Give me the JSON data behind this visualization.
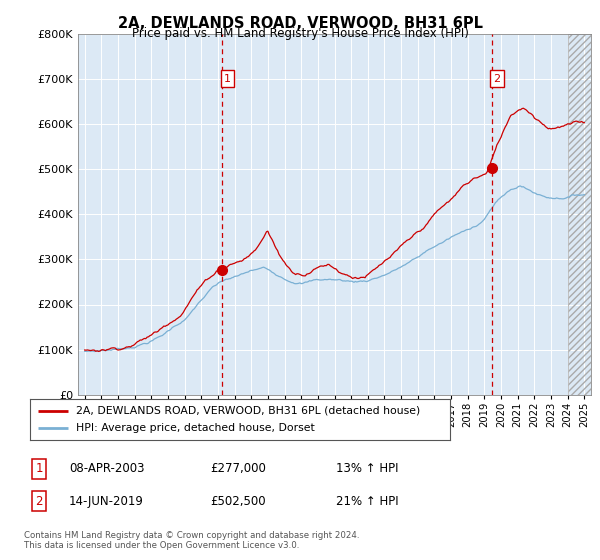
{
  "title": "2A, DEWLANDS ROAD, VERWOOD, BH31 6PL",
  "subtitle": "Price paid vs. HM Land Registry's House Price Index (HPI)",
  "ytick_values": [
    0,
    100000,
    200000,
    300000,
    400000,
    500000,
    600000,
    700000,
    800000
  ],
  "ylim": [
    0,
    800000
  ],
  "legend_line1": "2A, DEWLANDS ROAD, VERWOOD, BH31 6PL (detached house)",
  "legend_line2": "HPI: Average price, detached house, Dorset",
  "transaction1_label": "1",
  "transaction1_date": "08-APR-2003",
  "transaction1_price": "£277,000",
  "transaction1_hpi": "13% ↑ HPI",
  "transaction2_label": "2",
  "transaction2_date": "14-JUN-2019",
  "transaction2_price": "£502,500",
  "transaction2_hpi": "21% ↑ HPI",
  "footnote": "Contains HM Land Registry data © Crown copyright and database right 2024.\nThis data is licensed under the Open Government Licence v3.0.",
  "line_color_red": "#cc0000",
  "line_color_blue": "#7ab0d4",
  "vline_color": "#cc0000",
  "plot_bg_color": "#dce9f5",
  "grid_color": "#ffffff",
  "transaction1_x": 2003.27,
  "transaction2_x": 2019.45,
  "transaction1_y": 277000,
  "transaction2_y": 502500,
  "xlim_left": 1994.6,
  "xlim_right": 2025.4
}
